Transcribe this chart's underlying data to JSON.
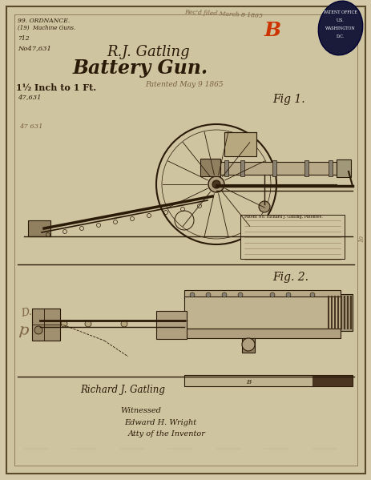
{
  "bg_color": "#d4c9a8",
  "paper_color": "#cfc4a0",
  "border_color": "#5a4a2a",
  "line_color": "#2a1a08",
  "title_name": "R.J. Gatling",
  "title_gun": "Battery Gun.",
  "subtitle": "1½ Inch to 1 Ft.",
  "patented": "Patented May 9 1865",
  "fig1_label": "Fig 1.",
  "fig2_label": "Fig. 2.",
  "top_left1": "99. ORDNANCE.",
  "top_left2": "(19)  Machine Guns.",
  "patent_no": "No47,631",
  "patent_no2": "47,631",
  "stamp_color": "#1a1a3a",
  "red_letter": "B",
  "signature": "Richard J. Gatling",
  "witness": "Witnessed",
  "witness2": "Edward H. Wright",
  "witness3": "Atty of the Inventor",
  "ink_line": "#3a2a10",
  "sepia_dark": "#4a3520",
  "sepia_mid": "#7a6040",
  "sepia_light": "#a09060"
}
